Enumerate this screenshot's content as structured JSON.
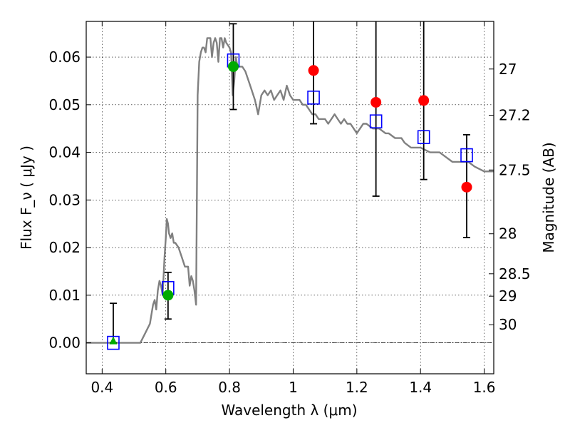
{
  "chart_data": {
    "type": "scatter",
    "xlabel": "Wavelength  λ (μm)",
    "ylabel": "Flux  F_ν  ( μJy )",
    "ylabel_right": "Magnitude (AB)",
    "xlim": [
      0.35,
      1.63
    ],
    "ylim": [
      -0.0065,
      0.0675
    ],
    "x_ticks": [
      0.4,
      0.6,
      0.8,
      1.0,
      1.2,
      1.4,
      1.6
    ],
    "x_tick_labels": [
      "0.4",
      "0.6",
      "0.8",
      "1",
      "1.2",
      "1.4",
      "1.6"
    ],
    "y_ticks": [
      0.0,
      0.01,
      0.02,
      0.03,
      0.04,
      0.05,
      0.06
    ],
    "y_tick_labels": [
      "0.00",
      "0.01",
      "0.02",
      "0.03",
      "0.04",
      "0.05",
      "0.06"
    ],
    "right_ticks": [
      {
        "label": "27",
        "flux": 0.0575
      },
      {
        "label": "27.2",
        "flux": 0.0478
      },
      {
        "label": "27.5",
        "flux": 0.0363
      },
      {
        "label": "28",
        "flux": 0.0229
      },
      {
        "label": "28.5",
        "flux": 0.0145
      },
      {
        "label": "29",
        "flux": 0.0098
      },
      {
        "label": "30",
        "flux": 0.0038
      }
    ],
    "grid": true,
    "zero_line": true,
    "colors": {
      "model": "#808080",
      "red_points": "#ff0000",
      "green_points": "#00aa00",
      "blue_squares": "#0000ff",
      "errorbars": "#000000"
    },
    "model_spectrum": {
      "x": [
        0.35,
        0.52,
        0.535,
        0.55,
        0.56,
        0.565,
        0.57,
        0.575,
        0.58,
        0.585,
        0.59,
        0.593,
        0.596,
        0.6,
        0.603,
        0.607,
        0.61,
        0.615,
        0.62,
        0.625,
        0.63,
        0.64,
        0.65,
        0.66,
        0.67,
        0.675,
        0.68,
        0.685,
        0.69,
        0.695,
        0.7,
        0.705,
        0.71,
        0.715,
        0.72,
        0.725,
        0.73,
        0.74,
        0.745,
        0.75,
        0.755,
        0.76,
        0.765,
        0.77,
        0.775,
        0.78,
        0.785,
        0.79,
        0.8,
        0.805,
        0.81,
        0.815,
        0.82,
        0.825,
        0.83,
        0.84,
        0.85,
        0.86,
        0.87,
        0.88,
        0.89,
        0.9,
        0.91,
        0.92,
        0.93,
        0.94,
        0.95,
        0.96,
        0.97,
        0.98,
        0.99,
        1.0,
        1.01,
        1.02,
        1.03,
        1.04,
        1.05,
        1.06,
        1.07,
        1.08,
        1.09,
        1.1,
        1.11,
        1.12,
        1.13,
        1.14,
        1.15,
        1.16,
        1.17,
        1.18,
        1.19,
        1.2,
        1.21,
        1.22,
        1.23,
        1.25,
        1.27,
        1.29,
        1.3,
        1.32,
        1.34,
        1.35,
        1.37,
        1.4,
        1.43,
        1.45,
        1.46,
        1.48,
        1.5,
        1.52,
        1.55,
        1.57,
        1.6,
        1.63
      ],
      "y": [
        0.0,
        0.0,
        0.002,
        0.004,
        0.008,
        0.009,
        0.007,
        0.011,
        0.013,
        0.012,
        0.01,
        0.014,
        0.018,
        0.022,
        0.026,
        0.025,
        0.023,
        0.022,
        0.023,
        0.021,
        0.021,
        0.02,
        0.018,
        0.016,
        0.016,
        0.012,
        0.014,
        0.013,
        0.011,
        0.008,
        0.052,
        0.059,
        0.061,
        0.062,
        0.062,
        0.061,
        0.064,
        0.064,
        0.06,
        0.063,
        0.064,
        0.063,
        0.059,
        0.064,
        0.064,
        0.062,
        0.064,
        0.063,
        0.062,
        0.061,
        0.052,
        0.055,
        0.06,
        0.058,
        0.058,
        0.058,
        0.057,
        0.055,
        0.053,
        0.051,
        0.048,
        0.052,
        0.053,
        0.052,
        0.053,
        0.051,
        0.052,
        0.053,
        0.051,
        0.054,
        0.052,
        0.051,
        0.051,
        0.051,
        0.05,
        0.05,
        0.049,
        0.048,
        0.048,
        0.047,
        0.047,
        0.047,
        0.046,
        0.047,
        0.048,
        0.047,
        0.046,
        0.047,
        0.046,
        0.046,
        0.045,
        0.044,
        0.045,
        0.046,
        0.046,
        0.045,
        0.045,
        0.044,
        0.044,
        0.043,
        0.043,
        0.042,
        0.041,
        0.041,
        0.04,
        0.04,
        0.04,
        0.039,
        0.038,
        0.038,
        0.038,
        0.037,
        0.036,
        0.036
      ]
    },
    "observed_points": [
      {
        "x": 0.607,
        "y": 0.01,
        "yerr_low": 0.005,
        "yerr_high": 0.0148
      },
      {
        "x": 0.812,
        "y": 0.058,
        "yerr_low": 0.049,
        "yerr_high": 0.067
      },
      {
        "x": 1.064,
        "y": 0.0572,
        "yerr_low": 0.046,
        "yerr_high": 0.0675
      },
      {
        "x": 1.26,
        "y": 0.0505,
        "yerr_low": 0.0308,
        "yerr_high": 0.0675
      },
      {
        "x": 1.41,
        "y": 0.0509,
        "yerr_low": 0.0343,
        "yerr_high": 0.0675
      },
      {
        "x": 1.545,
        "y": 0.0327,
        "yerr_low": 0.0221,
        "yerr_high": 0.0437
      }
    ],
    "green_points": [
      {
        "x": 0.607,
        "y": 0.01
      },
      {
        "x": 0.812,
        "y": 0.058
      }
    ],
    "green_triangle": {
      "x": 0.435,
      "y": 0.0003,
      "yerr_low": 0.0,
      "yerr_high": 0.0083
    },
    "model_squares": [
      {
        "x": 0.435,
        "y": 0.0
      },
      {
        "x": 0.607,
        "y": 0.0115
      },
      {
        "x": 0.812,
        "y": 0.0593
      },
      {
        "x": 1.064,
        "y": 0.0515
      },
      {
        "x": 1.26,
        "y": 0.0465
      },
      {
        "x": 1.41,
        "y": 0.0432
      },
      {
        "x": 1.545,
        "y": 0.0394
      }
    ]
  }
}
